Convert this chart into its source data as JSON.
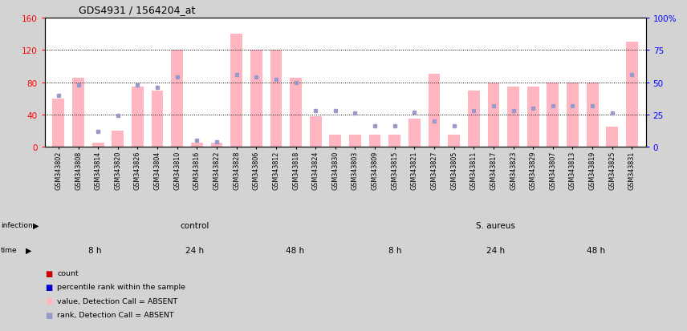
{
  "title": "GDS4931 / 1564204_at",
  "samples": [
    "GSM343802",
    "GSM343808",
    "GSM343814",
    "GSM343820",
    "GSM343826",
    "GSM343804",
    "GSM343810",
    "GSM343816",
    "GSM343822",
    "GSM343828",
    "GSM343806",
    "GSM343812",
    "GSM343818",
    "GSM343824",
    "GSM343830",
    "GSM343803",
    "GSM343809",
    "GSM343815",
    "GSM343821",
    "GSM343827",
    "GSM343805",
    "GSM343811",
    "GSM343817",
    "GSM343823",
    "GSM343829",
    "GSM343807",
    "GSM343813",
    "GSM343819",
    "GSM343825",
    "GSM343831"
  ],
  "bar_values": [
    60,
    85,
    5,
    20,
    75,
    70,
    120,
    5,
    5,
    140,
    120,
    120,
    85,
    38,
    15,
    15,
    15,
    15,
    35,
    90,
    15,
    70,
    80,
    75,
    75,
    80,
    80,
    80,
    25,
    130
  ],
  "dot_values_pct": [
    40,
    48,
    12,
    24,
    48,
    46,
    54,
    5,
    4,
    56,
    54,
    52,
    50,
    28,
    28,
    26,
    16,
    16,
    27,
    20,
    16,
    28,
    32,
    28,
    30,
    32,
    32,
    32,
    26,
    56
  ],
  "is_absent": [
    true,
    true,
    true,
    true,
    true,
    true,
    true,
    true,
    true,
    true,
    true,
    true,
    true,
    true,
    true,
    true,
    true,
    true,
    true,
    true,
    true,
    true,
    true,
    true,
    true,
    true,
    true,
    true,
    true,
    true
  ],
  "ylim_left": [
    0,
    160
  ],
  "ylim_right": [
    0,
    100
  ],
  "yticks_left": [
    0,
    40,
    80,
    120,
    160
  ],
  "yticks_right": [
    0,
    25,
    50,
    75,
    100
  ],
  "ytick_labels_right": [
    "0",
    "25",
    "50",
    "75",
    "100%"
  ],
  "bar_color_absent": "#ffb6c1",
  "dot_color_absent": "#9999cc",
  "bg_color": "#d3d3d3",
  "plot_bg": "#ffffff",
  "infection_groups": [
    {
      "label": "control",
      "start": 0,
      "end": 15
    },
    {
      "label": "S. aureus",
      "start": 15,
      "end": 30
    }
  ],
  "time_groups": [
    {
      "label": "8 h",
      "start": 0,
      "end": 5,
      "light": true
    },
    {
      "label": "24 h",
      "start": 5,
      "end": 10,
      "light": false
    },
    {
      "label": "48 h",
      "start": 10,
      "end": 15,
      "light": false
    },
    {
      "label": "8 h",
      "start": 15,
      "end": 20,
      "light": true
    },
    {
      "label": "24 h",
      "start": 20,
      "end": 25,
      "light": false
    },
    {
      "label": "48 h",
      "start": 25,
      "end": 30,
      "light": false
    }
  ],
  "time_color_light": "#f0a0f0",
  "time_color_dark": "#cc55cc",
  "infection_color": "#77dd77",
  "legend_items": [
    {
      "color": "#cc0000",
      "label": "count"
    },
    {
      "color": "#0000cc",
      "label": "percentile rank within the sample"
    },
    {
      "color": "#ffb6c1",
      "label": "value, Detection Call = ABSENT"
    },
    {
      "color": "#9999cc",
      "label": "rank, Detection Call = ABSENT"
    }
  ]
}
